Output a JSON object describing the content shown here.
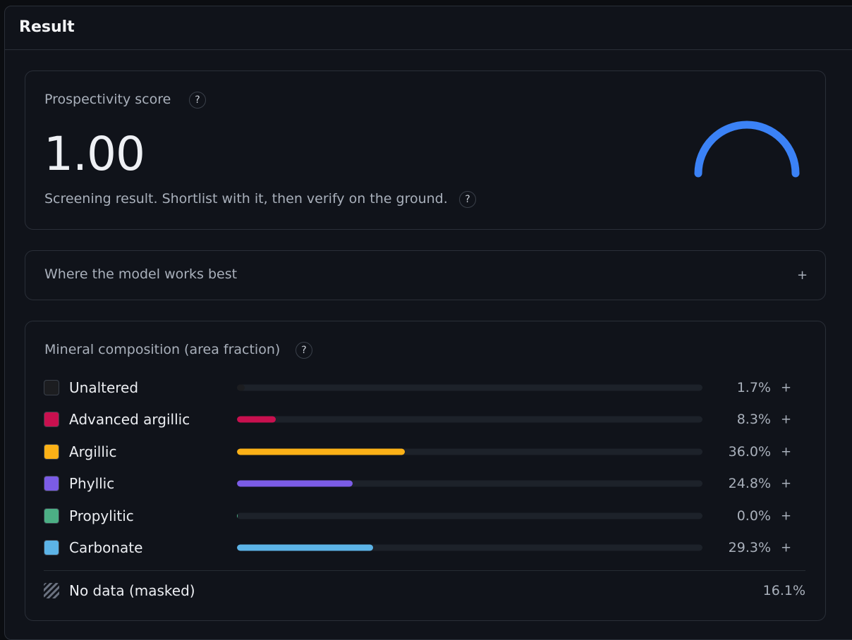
{
  "header": {
    "title": "Result"
  },
  "score_card": {
    "title": "Prospectivity score",
    "help": "?",
    "score": {
      "value": 1,
      "label": "1.00"
    },
    "gauge_range": [
      0,
      1
    ],
    "gauge_color": "#3b82f6",
    "note": "Screening result. Shortlist with it, then verify on the ground.",
    "note_help": "?"
  },
  "accordion": {
    "title": "Where the model works best",
    "toggle": "+"
  },
  "composition": {
    "title": "Mineral composition (area fraction)",
    "help": "?",
    "xlim": [
      0,
      100
    ],
    "items": [
      {
        "name": "Unaltered",
        "color": "#1c1d20",
        "value": 1.7,
        "value_label": "1.7%",
        "toggle": "+"
      },
      {
        "name": "Advanced argillic",
        "color": "#c8104f",
        "value": 8.3,
        "value_label": "8.3%",
        "toggle": "+"
      },
      {
        "name": "Argillic",
        "color": "#fbb117",
        "value": 36.0,
        "value_label": "36.0%",
        "toggle": "+"
      },
      {
        "name": "Phyllic",
        "color": "#7b5ce6",
        "value": 24.8,
        "value_label": "24.8%",
        "toggle": "+"
      },
      {
        "name": "Propylitic",
        "color": "#4caf85",
        "value": 0.0,
        "value_label": "0.0%",
        "toggle": "+"
      },
      {
        "name": "Carbonate",
        "color": "#5cb3e6",
        "value": 29.3,
        "value_label": "29.3%",
        "toggle": "+"
      }
    ],
    "masked": {
      "name": "No data (masked)",
      "value": 16.1,
      "value_label": "16.1%"
    }
  }
}
